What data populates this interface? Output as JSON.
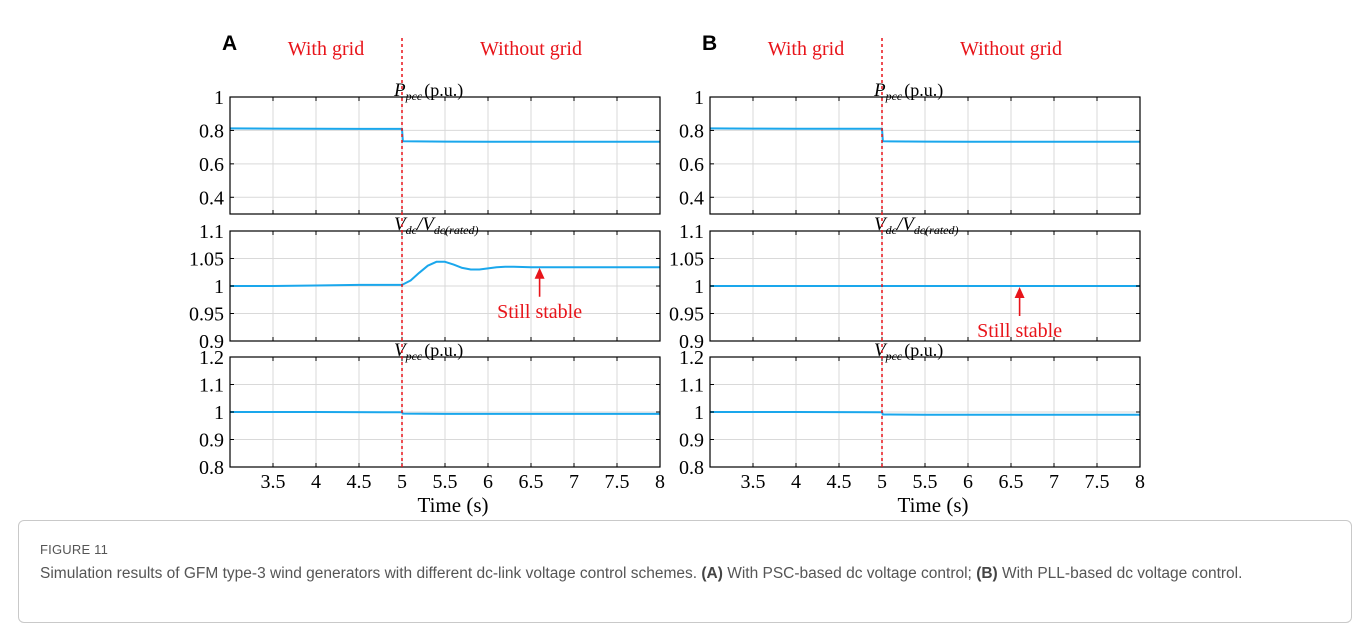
{
  "figure": {
    "label": "FIGURE 11",
    "caption": "Simulation results of GFM type-3 wind generators with different dc-link voltage control schemes.",
    "caption_parts": [
      {
        "bold": "(A)",
        "text": " With PSC-based dc voltage control; "
      },
      {
        "bold": "(B)",
        "text": " With PLL-based dc voltage control."
      }
    ]
  },
  "colors": {
    "trace": "#1aa7ec",
    "event": "#e8141a",
    "axis": "#000000",
    "grid": "#d9d9d9"
  },
  "chart_data": [
    {
      "panel": "A",
      "type": "line",
      "event_x": 5,
      "region_labels": [
        "With grid",
        "Without grid"
      ],
      "xlabel": "Time (s)",
      "xlim": [
        3,
        8
      ],
      "x_ticks": [
        3.5,
        4,
        4.5,
        5,
        5.5,
        6,
        6.5,
        7,
        7.5,
        8
      ],
      "subplots": [
        {
          "id": "p_pcc",
          "label_main": "P",
          "label_sub": "pcc",
          "label_unit": "(p.u.)",
          "ylim": [
            0.3,
            1.0
          ],
          "y_ticks": [
            0.4,
            0.6,
            0.8,
            1
          ],
          "series": [
            {
              "x": [
                3,
                3.5,
                4,
                4.5,
                5,
                5.01,
                5.5,
                6,
                6.5,
                7,
                7.5,
                8
              ],
              "y": [
                0.812,
                0.811,
                0.81,
                0.809,
                0.809,
                0.735,
                0.733,
                0.732,
                0.732,
                0.732,
                0.732,
                0.732
              ]
            }
          ]
        },
        {
          "id": "vdc",
          "label_main": "V",
          "label_sub": "dc",
          "label_mid": "/V",
          "label_sub2": "dc(rated)",
          "label_unit": "",
          "ylim": [
            0.9,
            1.1
          ],
          "y_ticks": [
            0.9,
            0.95,
            1,
            1.05,
            1.1
          ],
          "annotation": {
            "text": "Still stable",
            "x": 6.6,
            "y": 1.035
          },
          "series": [
            {
              "x": [
                3,
                3.5,
                4,
                4.5,
                4.8,
                5,
                5.1,
                5.2,
                5.3,
                5.4,
                5.5,
                5.6,
                5.7,
                5.8,
                5.9,
                6,
                6.1,
                6.2,
                6.3,
                6.5,
                6.7,
                7,
                7.5,
                8
              ],
              "y": [
                1.0,
                1.0,
                1.001,
                1.002,
                1.002,
                1.002,
                1.01,
                1.024,
                1.037,
                1.044,
                1.044,
                1.039,
                1.033,
                1.03,
                1.03,
                1.032,
                1.034,
                1.035,
                1.035,
                1.034,
                1.034,
                1.034,
                1.034,
                1.034
              ]
            }
          ]
        },
        {
          "id": "v_pcc",
          "label_main": "V",
          "label_sub": "pcc",
          "label_unit": "(p.u.)",
          "ylim": [
            0.8,
            1.2
          ],
          "y_ticks": [
            0.8,
            0.9,
            1,
            1.1,
            1.2
          ],
          "series": [
            {
              "x": [
                3,
                4,
                5,
                5.01,
                5.5,
                6,
                7,
                8
              ],
              "y": [
                1.0,
                1.0,
                0.999,
                0.994,
                0.993,
                0.993,
                0.993,
                0.993
              ]
            }
          ]
        }
      ]
    },
    {
      "panel": "B",
      "type": "line",
      "event_x": 5,
      "region_labels": [
        "With grid",
        "Without grid"
      ],
      "xlabel": "Time (s)",
      "xlim": [
        3,
        8
      ],
      "x_ticks": [
        3.5,
        4,
        4.5,
        5,
        5.5,
        6,
        6.5,
        7,
        7.5,
        8
      ],
      "subplots": [
        {
          "id": "p_pcc",
          "label_main": "P",
          "label_sub": "pcc",
          "label_unit": "(p.u.)",
          "ylim": [
            0.3,
            1.0
          ],
          "y_ticks": [
            0.4,
            0.6,
            0.8,
            1
          ],
          "series": [
            {
              "x": [
                3,
                3.5,
                4,
                4.5,
                5,
                5.01,
                5.5,
                6,
                6.5,
                7,
                7.5,
                8
              ],
              "y": [
                0.812,
                0.811,
                0.81,
                0.81,
                0.81,
                0.735,
                0.733,
                0.732,
                0.732,
                0.732,
                0.732,
                0.732
              ]
            }
          ]
        },
        {
          "id": "vdc",
          "label_main": "V",
          "label_sub": "dc",
          "label_mid": "/V",
          "label_sub2": "dc(rated)",
          "label_unit": "",
          "ylim": [
            0.9,
            1.1
          ],
          "y_ticks": [
            0.9,
            0.95,
            1,
            1.05,
            1.1
          ],
          "annotation": {
            "text": "Still stable",
            "x": 6.6,
            "y": 1.0
          },
          "series": [
            {
              "x": [
                3,
                4,
                5,
                5.1,
                6,
                7,
                8
              ],
              "y": [
                1.0,
                1.0,
                1.0,
                1.0,
                1.0,
                1.0,
                1.0
              ]
            }
          ]
        },
        {
          "id": "v_pcc",
          "label_main": "V",
          "label_sub": "pcc",
          "label_unit": "(p.u.)",
          "ylim": [
            0.8,
            1.2
          ],
          "y_ticks": [
            0.8,
            0.9,
            1,
            1.1,
            1.2
          ],
          "series": [
            {
              "x": [
                3,
                4,
                5,
                5.01,
                5.5,
                6,
                7,
                8
              ],
              "y": [
                1.0,
                1.0,
                0.999,
                0.991,
                0.99,
                0.99,
                0.99,
                0.99
              ]
            }
          ]
        }
      ]
    }
  ]
}
